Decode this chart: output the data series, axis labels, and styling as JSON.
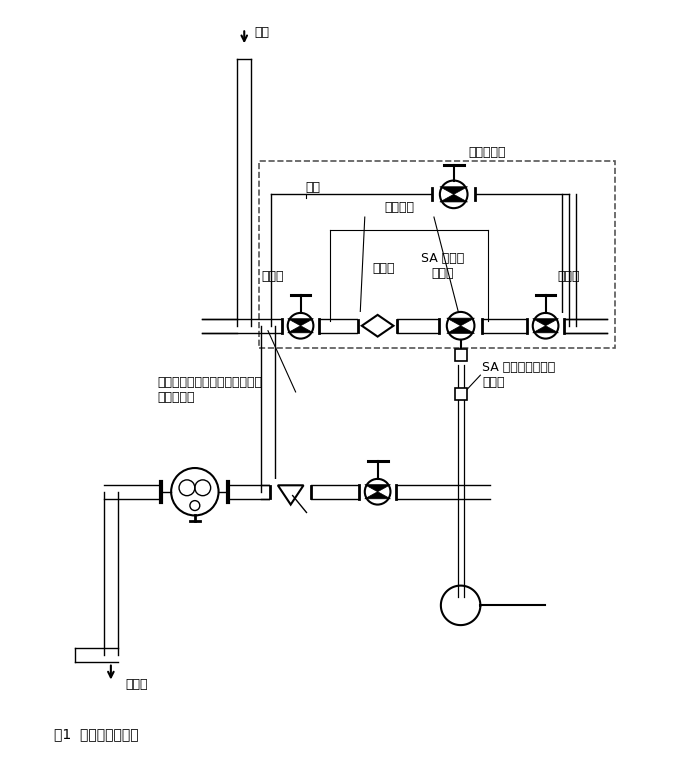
{
  "title": "图1  带旁路典型安装",
  "background_color": "#ffffff",
  "line_color": "#000000",
  "labels": {
    "steam": "蒸汽",
    "bypass": "旁路",
    "manual_valve": "手动调节阀",
    "gate_valve_left": "截止阀",
    "gate_valve_right": "截止阀",
    "eccentric": "偏心缩径",
    "filter": "过滤器",
    "sa_control": "SA 自作用\n控制阀",
    "drain_note": "当介质是蒸汽时，排水管路上应\n安装疏水阀",
    "sa_actuator": "SA 自作用控制系统\n执行器",
    "condensate": "冷凝水"
  }
}
